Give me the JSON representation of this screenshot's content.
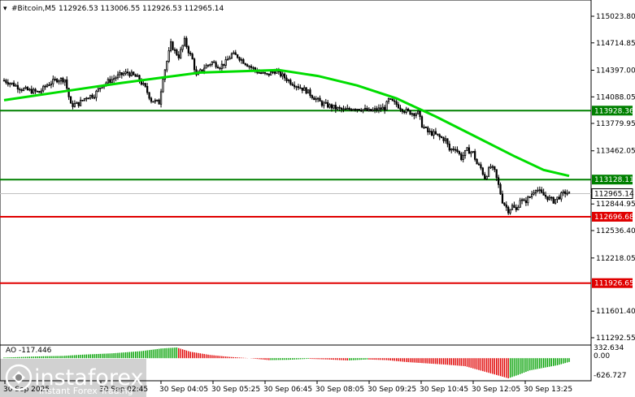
{
  "header": {
    "symbol": "#Bitcoin,M5",
    "ohlc": "112926.53 113006.55 112926.53 112965.14"
  },
  "indicator": {
    "label": "AO -117.446",
    "scale_top": "332.634",
    "scale_zero": "0.00",
    "scale_bottom": "-626.727"
  },
  "watermark": {
    "brand": "instaforex",
    "tagline": "Instant Forex Trading"
  },
  "price_axis": {
    "ticks": [
      "115023.80",
      "114714.85",
      "114397.00",
      "114088.05",
      "113779.95",
      "113462.05",
      "112844.95",
      "112536.40",
      "112218.05",
      "111601.40",
      "111292.55"
    ]
  },
  "levels": [
    {
      "label": "113928.36",
      "value": 113928.36,
      "color": "#008000"
    },
    {
      "label": "113128.11",
      "value": 113128.11,
      "color": "#008000"
    },
    {
      "label": "112696.68",
      "value": 112696.68,
      "color": "#e00000"
    },
    {
      "label": "111926.65",
      "value": 111926.65,
      "color": "#e00000"
    }
  ],
  "current_price": {
    "label": "112965.14",
    "value": 112965.14
  },
  "time_axis": {
    "ticks": [
      "30 Sep 2025",
      "30 Sep 02:45",
      "30 Sep 04:05",
      "30 Sep 05:25",
      "30 Sep 06:45",
      "30 Sep 08:05",
      "30 Sep 09:25",
      "30 Sep 10:45",
      "30 Sep 12:05",
      "30 Sep 13:25"
    ]
  },
  "chart_data": {
    "type": "candlestick",
    "symbol": "#Bitcoin",
    "timeframe": "M5",
    "y_range": [
      111250,
      115200
    ],
    "moving_average_color": "#00dd00",
    "close_path": [
      [
        0,
        114280
      ],
      [
        5,
        114230
      ],
      [
        9,
        114180
      ],
      [
        13,
        114160
      ],
      [
        18,
        114140
      ],
      [
        22,
        114230
      ],
      [
        27,
        114290
      ],
      [
        31,
        114290
      ],
      [
        34,
        113990
      ],
      [
        38,
        114010
      ],
      [
        42,
        114090
      ],
      [
        46,
        114110
      ],
      [
        50,
        114230
      ],
      [
        55,
        114290
      ],
      [
        59,
        114340
      ],
      [
        63,
        114370
      ],
      [
        68,
        114310
      ],
      [
        72,
        114190
      ],
      [
        75,
        114050
      ],
      [
        79,
        114020
      ],
      [
        81,
        114320
      ],
      [
        83,
        114500
      ],
      [
        85,
        114700
      ],
      [
        87,
        114620
      ],
      [
        89,
        114560
      ],
      [
        92,
        114740
      ],
      [
        94,
        114620
      ],
      [
        96,
        114520
      ],
      [
        98,
        114330
      ],
      [
        102,
        114430
      ],
      [
        106,
        114490
      ],
      [
        110,
        114440
      ],
      [
        113,
        114490
      ],
      [
        116,
        114580
      ],
      [
        119,
        114560
      ],
      [
        122,
        114500
      ],
      [
        126,
        114430
      ],
      [
        130,
        114370
      ],
      [
        134,
        114340
      ],
      [
        138,
        114390
      ],
      [
        142,
        114330
      ],
      [
        146,
        114260
      ],
      [
        150,
        114210
      ],
      [
        154,
        114160
      ],
      [
        158,
        114080
      ],
      [
        162,
        114010
      ],
      [
        166,
        113980
      ],
      [
        170,
        113950
      ],
      [
        174,
        113930
      ],
      [
        178,
        113960
      ],
      [
        182,
        113950
      ],
      [
        186,
        113920
      ],
      [
        190,
        113940
      ],
      [
        194,
        113960
      ],
      [
        196,
        114050
      ],
      [
        200,
        114000
      ],
      [
        204,
        113930
      ],
      [
        208,
        113900
      ],
      [
        211,
        113900
      ],
      [
        213,
        113760
      ],
      [
        216,
        113680
      ],
      [
        219,
        113660
      ],
      [
        222,
        113620
      ],
      [
        225,
        113590
      ],
      [
        227,
        113470
      ],
      [
        230,
        113500
      ],
      [
        233,
        113380
      ],
      [
        236,
        113470
      ],
      [
        239,
        113440
      ],
      [
        241,
        113310
      ],
      [
        243,
        113260
      ],
      [
        245,
        113150
      ],
      [
        248,
        113280
      ],
      [
        250,
        113220
      ],
      [
        252,
        113060
      ],
      [
        254,
        112880
      ],
      [
        257,
        112770
      ],
      [
        259,
        112820
      ],
      [
        261,
        112770
      ],
      [
        263,
        112900
      ],
      [
        265,
        112860
      ],
      [
        268,
        112930
      ],
      [
        271,
        113030
      ],
      [
        274,
        112960
      ],
      [
        277,
        112920
      ],
      [
        280,
        112880
      ],
      [
        283,
        112930
      ],
      [
        286,
        112980
      ],
      [
        288,
        112965.14
      ]
    ],
    "ma_path": [
      [
        0,
        114050
      ],
      [
        30,
        114150
      ],
      [
        60,
        114250
      ],
      [
        100,
        114370
      ],
      [
        140,
        114400
      ],
      [
        160,
        114330
      ],
      [
        180,
        114220
      ],
      [
        200,
        114070
      ],
      [
        220,
        113860
      ],
      [
        240,
        113630
      ],
      [
        260,
        113400
      ],
      [
        275,
        113240
      ],
      [
        288,
        113170
      ]
    ],
    "ao_histogram": [
      [
        0,
        20
      ],
      [
        10,
        40
      ],
      [
        20,
        60
      ],
      [
        30,
        70
      ],
      [
        40,
        110
      ],
      [
        55,
        150
      ],
      [
        70,
        220
      ],
      [
        80,
        300
      ],
      [
        88,
        332.634
      ],
      [
        95,
        200
      ],
      [
        105,
        100
      ],
      [
        115,
        40
      ],
      [
        125,
        0
      ],
      [
        135,
        -60
      ],
      [
        145,
        -50
      ],
      [
        155,
        -20
      ],
      [
        165,
        -40
      ],
      [
        175,
        -70
      ],
      [
        185,
        -40
      ],
      [
        195,
        -60
      ],
      [
        205,
        -120
      ],
      [
        215,
        -160
      ],
      [
        225,
        -200
      ],
      [
        235,
        -250
      ],
      [
        245,
        -420
      ],
      [
        252,
        -540
      ],
      [
        257,
        -626.727
      ],
      [
        262,
        -520
      ],
      [
        268,
        -380
      ],
      [
        275,
        -300
      ],
      [
        282,
        -220
      ],
      [
        288,
        -117.446
      ]
    ]
  }
}
